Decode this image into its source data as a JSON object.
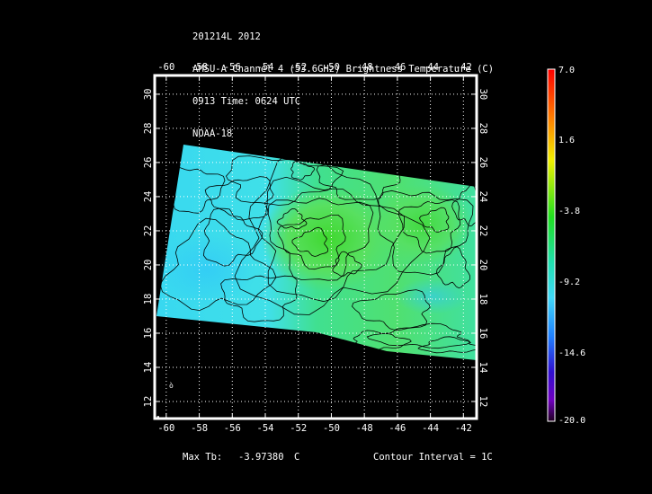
{
  "header": {
    "line1": "201214L 2012",
    "line2": "AMSU-A Channel 4 (53.6GHz) Brightness Temperature (C)",
    "line3": "0913 Time: 0624 UTC",
    "line4": "NOAA-18"
  },
  "map": {
    "lon_ticks": [
      "-60",
      "-58",
      "-56",
      "-54",
      "-52",
      "-50",
      "-48",
      "-46",
      "-44",
      "-42"
    ],
    "lat_ticks": [
      "12",
      "14",
      "16",
      "18",
      "20",
      "22",
      "24",
      "26",
      "28",
      "30"
    ],
    "lon_range": [
      -60.7,
      -41.2
    ],
    "lat_range": [
      11,
      31.1
    ],
    "grid": true,
    "grid_style": "dotted"
  },
  "colorbar": {
    "labels": [
      "7.0",
      "1.6",
      "-3.8",
      "-9.2",
      "-14.6",
      "-20.0"
    ],
    "range": [
      -20.0,
      7.0
    ],
    "colors": [
      "#ff0000",
      "#ffb000",
      "#e8e800",
      "#30e000",
      "#20d8a0",
      "#40e0f0",
      "#2080ff",
      "#2020e0",
      "#7000c0",
      "#300040"
    ]
  },
  "footer": {
    "max_label": "Max Tb:",
    "max_value": "-3.97380",
    "max_unit": "C",
    "contour_label": "Contour Interval = 1C"
  }
}
